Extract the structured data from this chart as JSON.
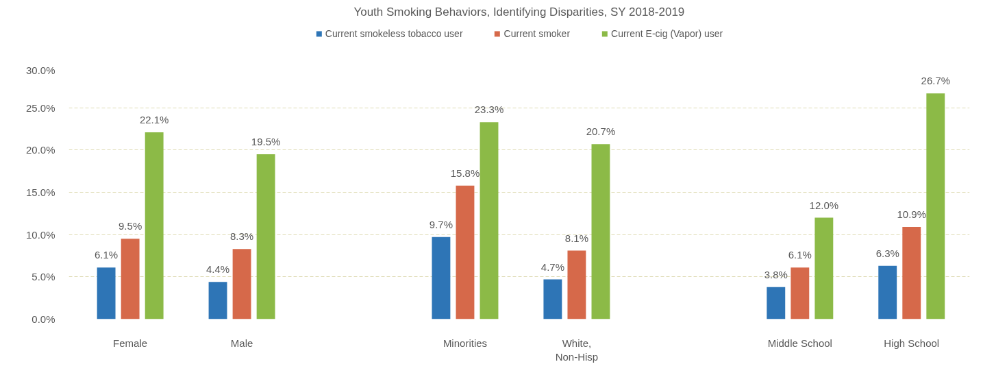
{
  "chart_data": {
    "type": "bar",
    "title": "Youth Smoking Behaviors, Identifying Disparities, SY 2018-2019",
    "categories": [
      "Female",
      "Male",
      null,
      "Minorities",
      "White,\nNon-Hisp",
      null,
      "Middle School",
      "High School"
    ],
    "series": [
      {
        "name": "Current smokeless tobacco user",
        "color": "#2e75b6",
        "values": [
          6.1,
          4.4,
          null,
          9.7,
          4.7,
          null,
          3.8,
          6.3
        ],
        "value_labels": [
          "6.1%",
          "4.4%",
          null,
          "9.7%",
          "4.7%",
          null,
          "3.8%",
          "6.3%"
        ]
      },
      {
        "name": "Current smoker",
        "color": "#d6694a",
        "values": [
          9.5,
          8.3,
          null,
          15.8,
          8.1,
          null,
          6.1,
          10.9
        ],
        "value_labels": [
          "9.5%",
          "8.3%",
          null,
          "15.8%",
          "8.1%",
          null,
          "6.1%",
          "10.9%"
        ]
      },
      {
        "name": "Current E-cig (Vapor) user",
        "color": "#8cba47",
        "values": [
          22.1,
          19.5,
          null,
          23.3,
          20.7,
          null,
          12.0,
          26.7
        ],
        "value_labels": [
          "22.1%",
          "19.5%",
          null,
          "23.3%",
          "20.7%",
          null,
          "12.0%",
          "26.7%"
        ]
      }
    ],
    "ylim": [
      0,
      30
    ],
    "yticks": [
      {
        "value": 0,
        "label": "0.0%"
      },
      {
        "value": 5,
        "label": "5.0%"
      },
      {
        "value": 10,
        "label": "10.0%"
      },
      {
        "value": 15,
        "label": "15.0%"
      },
      {
        "value": 20,
        "label": "20.0%"
      },
      {
        "value": 25,
        "label": "25.0%"
      },
      {
        "value": 30,
        "label": "30.0%"
      }
    ],
    "grid": "y",
    "legend": "top"
  }
}
